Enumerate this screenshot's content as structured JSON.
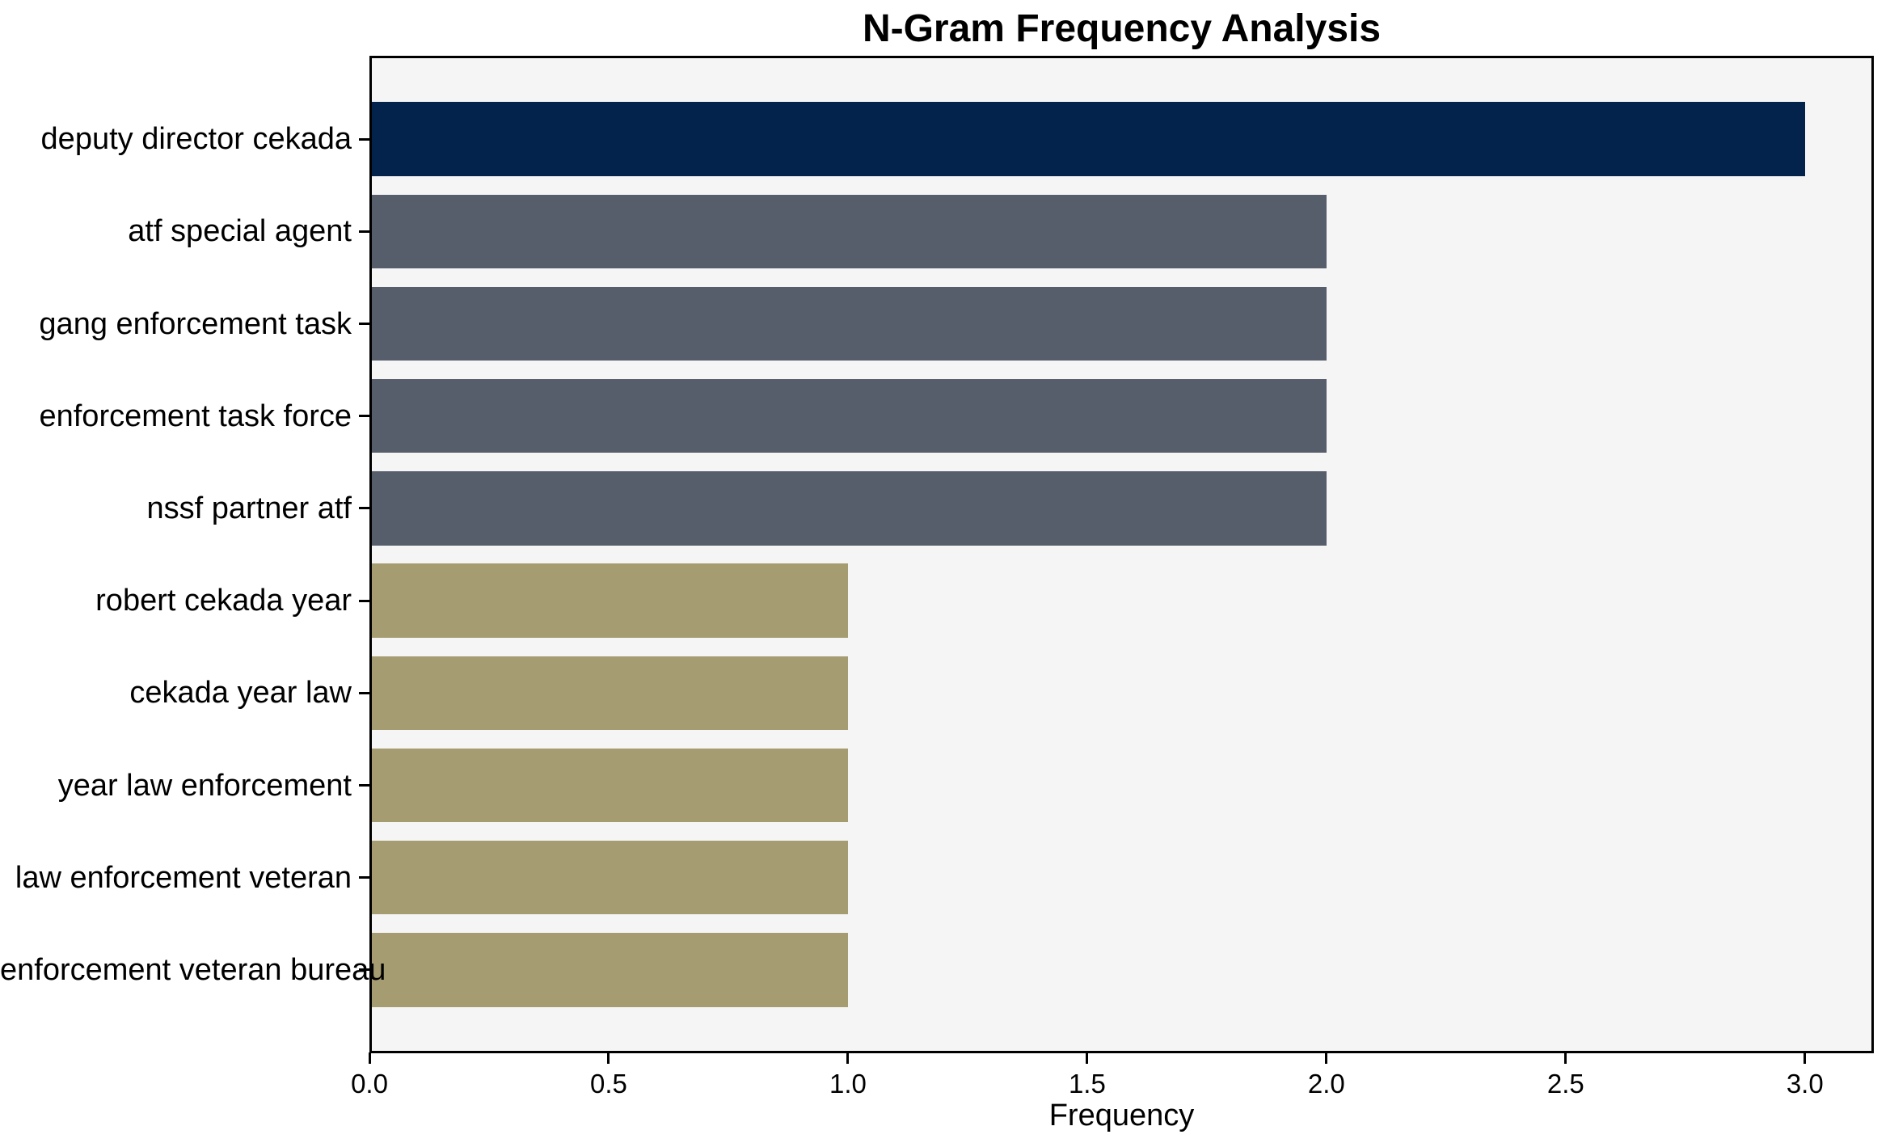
{
  "figure": {
    "background": "#ffffff",
    "plot_background": "#f5f5f6",
    "spine_color": "#000000"
  },
  "chart_data": {
    "type": "bar",
    "orientation": "horizontal",
    "title": "N-Gram Frequency Analysis",
    "xlabel": "Frequency",
    "ylabel": "",
    "categories": [
      "deputy director cekada",
      "atf special agent",
      "gang enforcement task",
      "enforcement task force",
      "nssf partner atf",
      "robert cekada year",
      "cekada year law",
      "year law enforcement",
      "law enforcement veteran",
      "enforcement veteran bureau"
    ],
    "values": [
      3,
      2,
      2,
      2,
      2,
      1,
      1,
      1,
      1,
      1
    ],
    "bar_colors": [
      "#03234d",
      "#565d6b",
      "#565d6b",
      "#565d6b",
      "#565d6b",
      "#a59c71",
      "#a59c71",
      "#a59c71",
      "#a59c71",
      "#a59c71"
    ],
    "color_legend": {
      "frequency_3": "#03234d",
      "frequency_2": "#565d6b",
      "frequency_1": "#a59c71"
    },
    "x_tick_values": [
      0.0,
      0.5,
      1.0,
      1.5,
      2.0,
      2.5,
      3.0
    ],
    "x_tick_labels": [
      "0.0",
      "0.5",
      "1.0",
      "1.5",
      "2.0",
      "2.5",
      "3.0"
    ],
    "xlim": [
      0,
      3.144
    ],
    "grid": false,
    "legend_position": "none"
  }
}
